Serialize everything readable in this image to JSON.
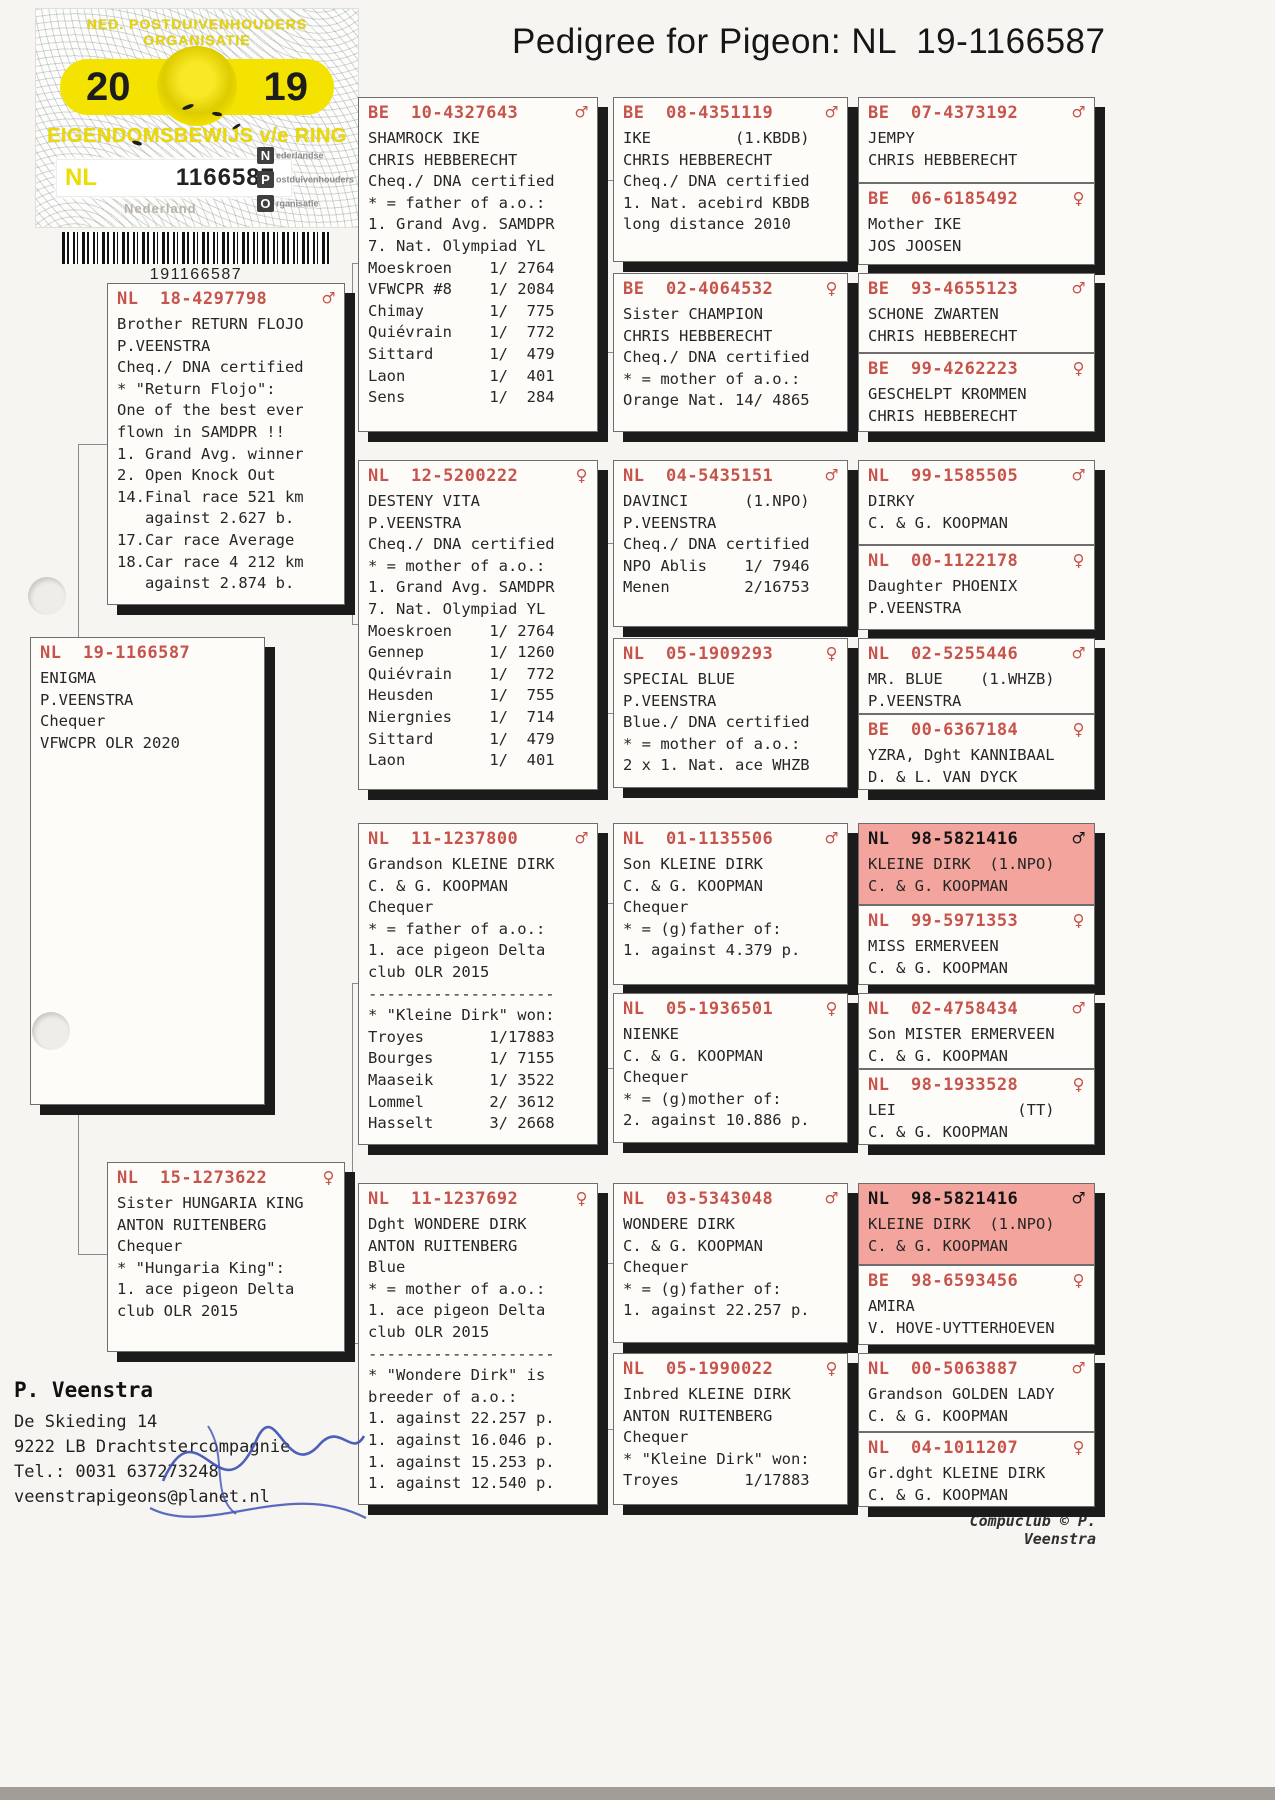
{
  "title": "Pedigree for Pigeon: NL  19-1166587",
  "ring_card": {
    "org_line": "NED. POSTDUIVENHOUDERS ORGANISATIE",
    "year_left": "20",
    "year_right": "19",
    "ownership_line": "EIGENDOMSBEWIJS v/e RING",
    "country": "NL",
    "ring_number": "1166587",
    "watermark": "Nederland",
    "npo_rows": [
      {
        "letter": "N",
        "word": "ederlandse"
      },
      {
        "letter": "P",
        "word": "ostduivenhouders"
      },
      {
        "letter": "O",
        "word": "rganisatie"
      }
    ],
    "barcode_number": "191166587"
  },
  "boxes": [
    {
      "ring": "NL  19-1166587",
      "sex": "",
      "body": "ENIGMA\nP.VEENSTRA\nChequer\nVFWCPR OLR 2020"
    },
    {
      "ring": "NL  18-4297798",
      "sex": "♂",
      "body": "Brother RETURN FLOJO\nP.VEENSTRA\nCheq./ DNA certified\n* \"Return Flojo\":\nOne of the best ever\nflown in SAMDPR !!\n1. Grand Avg. winner\n2. Open Knock Out\n14.Final race 521 km\n   against 2.627 b.\n17.Car race Average\n18.Car race 4 212 km\n   against 2.874 b."
    },
    {
      "ring": "NL  15-1273622",
      "sex": "♀",
      "body": "Sister HUNGARIA KING\nANTON RUITENBERG\nChequer\n* \"Hungaria King\":\n1. ace pigeon Delta\nclub OLR 2015"
    },
    {
      "ring": "BE  10-4327643",
      "sex": "♂",
      "body": "SHAMROCK IKE\nCHRIS HEBBERECHT\nCheq./ DNA certified\n* = father of a.o.:\n1. Grand Avg. SAMDPR\n7. Nat. Olympiad YL\nMoeskroen    1/ 2764\nVFWCPR #8    1/ 2084\nChimay       1/  775\nQuiévrain    1/  772\nSittard      1/  479\nLaon         1/  401\nSens         1/  284"
    },
    {
      "ring": "NL  12-5200222",
      "sex": "♀",
      "body": "DESTENY VITA\nP.VEENSTRA\nCheq./ DNA certified\n* = mother of a.o.:\n1. Grand Avg. SAMDPR\n7. Nat. Olympiad YL\nMoeskroen    1/ 2764\nGennep       1/ 1260\nQuiévrain    1/  772\nHeusden      1/  755\nNiergnies    1/  714\nSittard      1/  479\nLaon         1/  401"
    },
    {
      "ring": "NL  11-1237800",
      "sex": "♂",
      "body": "Grandson KLEINE DIRK\nC. & G. KOOPMAN\nChequer\n* = father of a.o.:\n1. ace pigeon Delta\nclub OLR 2015\n--------------------\n* \"Kleine Dirk\" won:\nTroyes       1/17883\nBourges      1/ 7155\nMaaseik      1/ 3522\nLommel       2/ 3612\nHasselt      3/ 2668"
    },
    {
      "ring": "NL  11-1237692",
      "sex": "♀",
      "body": "Dght WONDERE DIRK\nANTON RUITENBERG\nBlue\n* = mother of a.o.:\n1. ace pigeon Delta\nclub OLR 2015\n--------------------\n* \"Wondere Dirk\" is\nbreeder of a.o.:\n1. against 22.257 p.\n1. against 16.046 p.\n1. against 15.253 p.\n1. against 12.540 p."
    },
    {
      "ring": "BE  08-4351119",
      "sex": "♂",
      "body": "IKE         (1.KBDB)\nCHRIS HEBBERECHT\nCheq./ DNA certified\n1. Nat. acebird KBDB\nlong distance 2010"
    },
    {
      "ring": "BE  02-4064532",
      "sex": "♀",
      "body": "Sister CHAMPION\nCHRIS HEBBERECHT\nCheq./ DNA certified\n* = mother of a.o.:\nOrange Nat. 14/ 4865"
    },
    {
      "ring": "NL  04-5435151",
      "sex": "♂",
      "body": "DAVINCI      (1.NPO)\nP.VEENSTRA\nCheq./ DNA certified\nNPO Ablis    1/ 7946\nMenen        2/16753"
    },
    {
      "ring": "NL  05-1909293",
      "sex": "♀",
      "body": "SPECIAL BLUE\nP.VEENSTRA\nBlue./ DNA certified\n* = mother of a.o.:\n2 x 1. Nat. ace WHZB"
    },
    {
      "ring": "NL  01-1135506",
      "sex": "♂",
      "body": "Son KLEINE DIRK\nC. & G. KOOPMAN\nChequer\n* = (g)father of:\n1. against 4.379 p."
    },
    {
      "ring": "NL  05-1936501",
      "sex": "♀",
      "body": "NIENKE\nC. & G. KOOPMAN\nChequer\n* = (g)mother of:\n2. against 10.886 p."
    },
    {
      "ring": "NL  03-5343048",
      "sex": "♂",
      "body": "WONDERE DIRK\nC. & G. KOOPMAN\nChequer\n* = (g)father of:\n1. against 22.257 p."
    },
    {
      "ring": "NL  05-1990022",
      "sex": "♀",
      "body": "Inbred KLEINE DIRK\nANTON RUITENBERG\nChequer\n* \"Kleine Dirk\" won:\nTroyes       1/17883"
    },
    {
      "ring": "BE  07-4373192",
      "sex": "♂",
      "body": "JEMPY\nCHRIS HEBBERECHT"
    },
    {
      "ring": "BE  06-6185492",
      "sex": "♀",
      "body": "Mother IKE\nJOS JOOSEN"
    },
    {
      "ring": "BE  93-4655123",
      "sex": "♂",
      "body": "SCHONE ZWARTEN\nCHRIS HEBBERECHT"
    },
    {
      "ring": "BE  99-4262223",
      "sex": "♀",
      "body": "GESCHELPT KROMMEN\nCHRIS HEBBERECHT"
    },
    {
      "ring": "NL  99-1585505",
      "sex": "♂",
      "body": "DIRKY\nC. & G. KOOPMAN"
    },
    {
      "ring": "NL  00-1122178",
      "sex": "♀",
      "body": "Daughter PHOENIX\nP.VEENSTRA"
    },
    {
      "ring": "NL  02-5255446",
      "sex": "♂",
      "body": "MR. BLUE    (1.WHZB)\nP.VEENSTRA"
    },
    {
      "ring": "BE  00-6367184",
      "sex": "♀",
      "body": "YZRA, Dght KANNIBAAL\nD. & L. VAN DYCK"
    },
    {
      "ring": "NL  98-5821416",
      "sex": "♂",
      "body": "KLEINE DIRK  (1.NPO)\nC. & G. KOOPMAN"
    },
    {
      "ring": "NL  99-5971353",
      "sex": "♀",
      "body": "MISS ERMERVEEN\nC. & G. KOOPMAN"
    },
    {
      "ring": "NL  02-4758434",
      "sex": "♂",
      "body": "Son MISTER ERMERVEEN\nC. & G. KOOPMAN"
    },
    {
      "ring": "NL  98-1933528",
      "sex": "♀",
      "body": "LEI             (TT)\nC. & G. KOOPMAN"
    },
    {
      "ring": "NL  98-5821416",
      "sex": "♂",
      "body": "KLEINE DIRK  (1.NPO)\nC. & G. KOOPMAN"
    },
    {
      "ring": "BE  98-6593456",
      "sex": "♀",
      "body": "AMIRA\nV. HOVE-UYTTERHOEVEN"
    },
    {
      "ring": "NL  00-5063887",
      "sex": "♂",
      "body": "Grandson GOLDEN LADY\nC. & G. KOOPMAN"
    },
    {
      "ring": "NL  04-1011207",
      "sex": "♀",
      "body": "Gr.dght KLEINE DIRK\nC. & G. KOOPMAN"
    }
  ],
  "footer": {
    "name": "P. Veenstra",
    "address1": "De Skieding 14",
    "address2": "9222 LB Drachtstercompagnie",
    "phone": "Tel.: 0031 637273248",
    "email": "veenstrapigeons@planet.nl"
  },
  "credit": "Compuclub © P. Veenstra"
}
